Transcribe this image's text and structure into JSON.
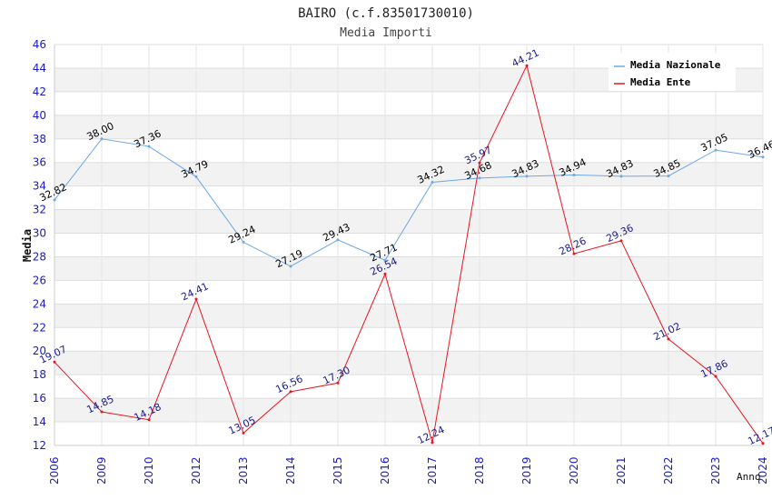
{
  "chart_data": {
    "type": "line",
    "title": "BAIRO (c.f.83501730010)",
    "subtitle": "Media Importi",
    "xlabel": "Anno",
    "ylabel": "Media",
    "ylim": [
      12,
      46
    ],
    "ytick_step": 2,
    "grid": true,
    "legend_position": "top-right",
    "categories": [
      "2006",
      "2009",
      "2010",
      "2012",
      "2013",
      "2014",
      "2015",
      "2016",
      "2017",
      "2018",
      "2019",
      "2020",
      "2021",
      "2022",
      "2023",
      "2024"
    ],
    "series": [
      {
        "name": "Media Nazionale",
        "color": "#6aa8e6",
        "values": [
          32.82,
          38.0,
          37.36,
          34.79,
          29.24,
          27.19,
          29.43,
          27.71,
          34.32,
          34.68,
          34.83,
          34.94,
          34.83,
          34.85,
          37.05,
          36.46
        ],
        "labels": [
          "32.82",
          "38.00",
          "37.36",
          "34.79",
          "29.24",
          "27.19",
          "29.43",
          "27.71",
          "34.32",
          "34.68",
          "34.83",
          "34.94",
          "34.83",
          "34.85",
          "37.05",
          "36.46"
        ]
      },
      {
        "name": "Media Ente",
        "color": "#e8141e",
        "values": [
          19.07,
          14.85,
          14.18,
          24.41,
          13.05,
          16.56,
          17.3,
          26.54,
          12.24,
          35.97,
          44.21,
          28.26,
          29.36,
          21.02,
          17.86,
          12.17
        ],
        "labels": [
          "19.07",
          "14.85",
          "14.18",
          "24.41",
          "13.05",
          "16.56",
          "17.30",
          "26.54",
          "12.24",
          "35.97",
          "44.21",
          "28.26",
          "29.36",
          "21.02",
          "17.86",
          "12.17"
        ]
      }
    ]
  }
}
